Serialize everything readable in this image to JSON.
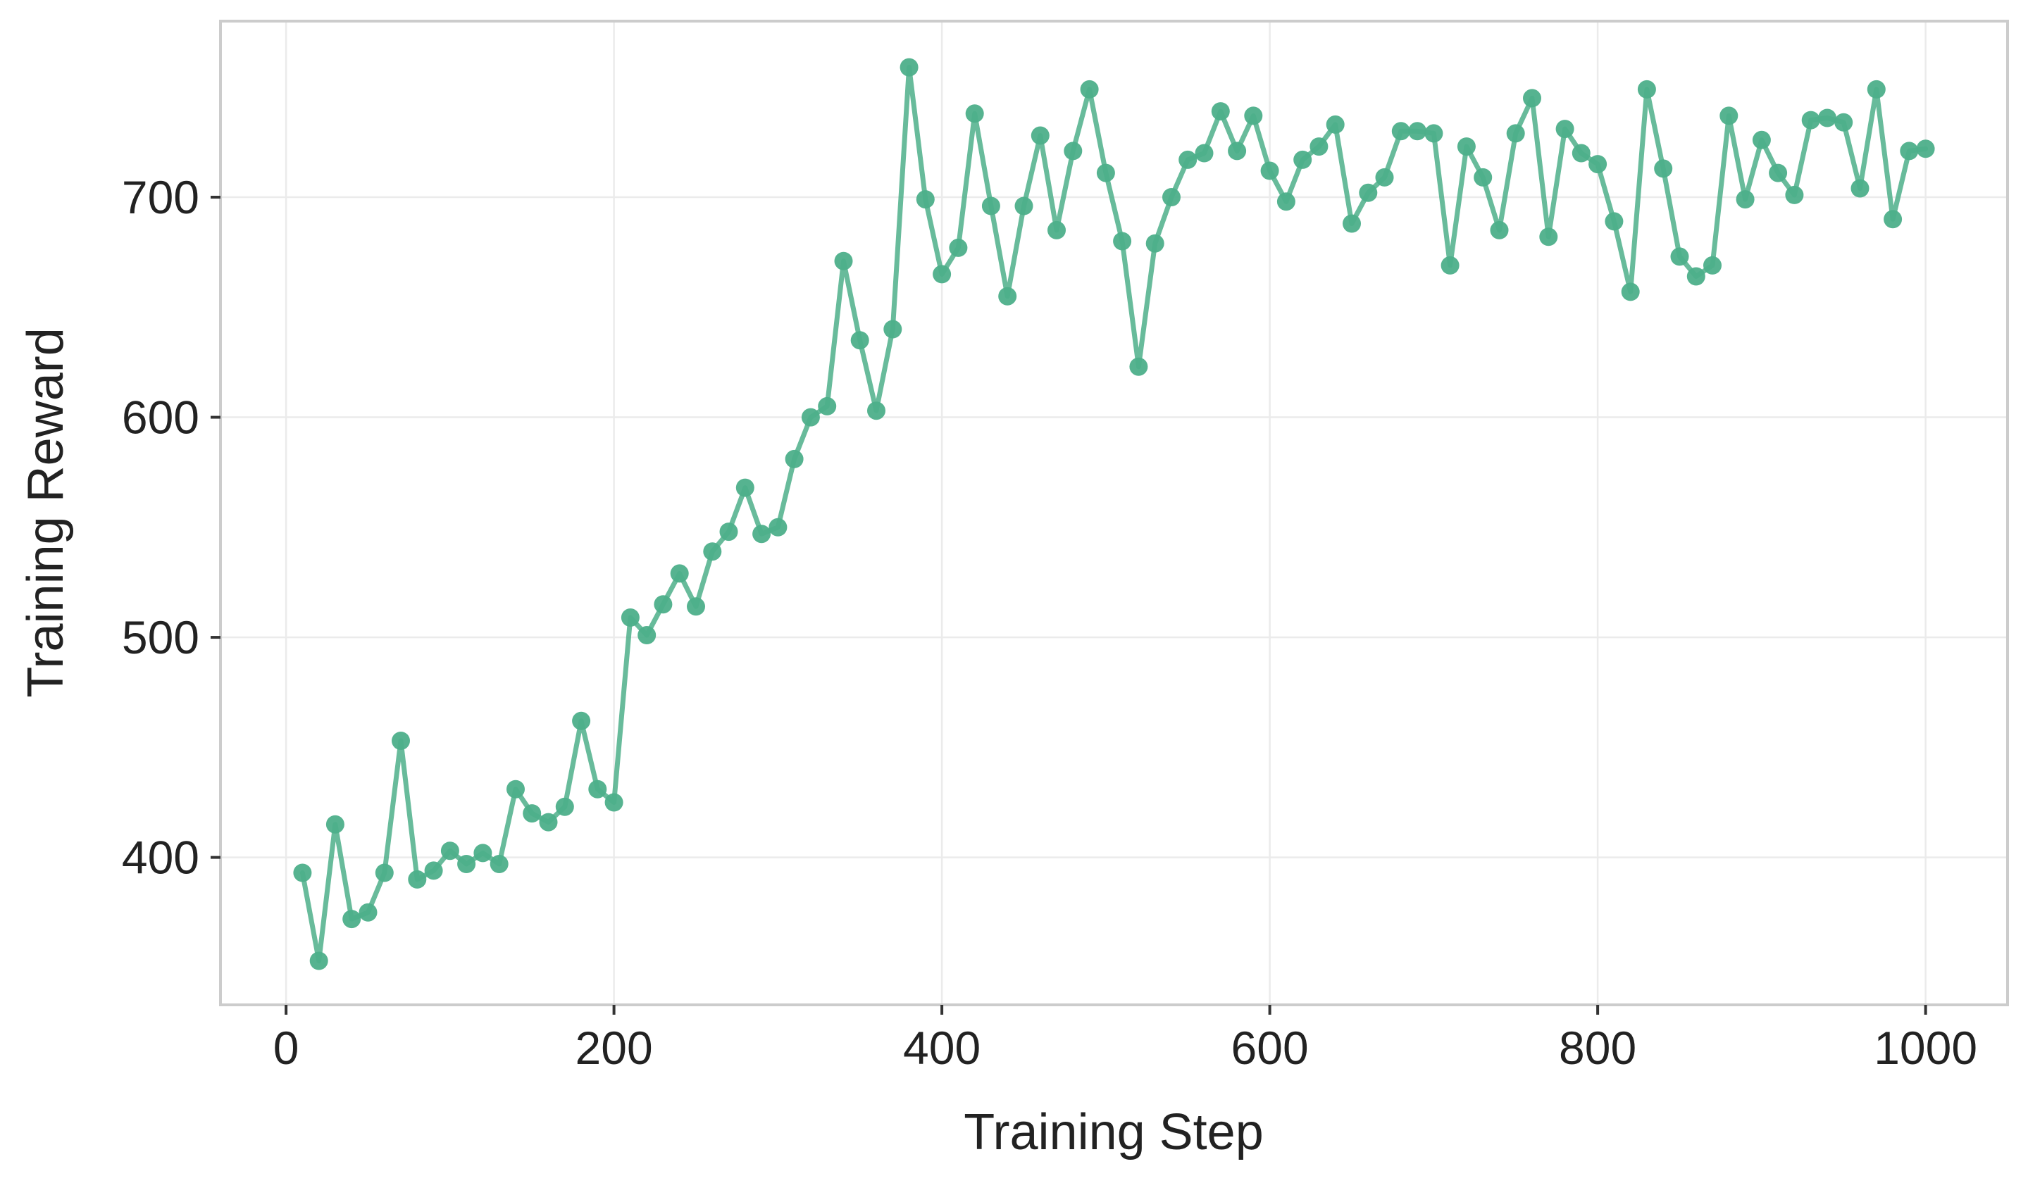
{
  "chart_data": {
    "type": "line",
    "xlabel": "Training Step",
    "ylabel": "Training Reward",
    "xlim": [
      -40,
      1050
    ],
    "ylim": [
      333,
      780
    ],
    "xticks": [
      0,
      200,
      400,
      600,
      800,
      1000
    ],
    "yticks": [
      400,
      500,
      600,
      700
    ],
    "grid": true,
    "series": [
      {
        "color": "#4daf8a",
        "x": [
          10,
          20,
          30,
          40,
          50,
          60,
          70,
          80,
          90,
          100,
          110,
          120,
          130,
          140,
          150,
          160,
          170,
          180,
          190,
          200,
          210,
          220,
          230,
          240,
          250,
          260,
          270,
          280,
          290,
          300,
          310,
          320,
          330,
          340,
          350,
          360,
          370,
          380,
          390,
          400,
          410,
          420,
          430,
          440,
          450,
          460,
          470,
          480,
          490,
          500,
          510,
          520,
          530,
          540,
          550,
          560,
          570,
          580,
          590,
          600,
          610,
          620,
          630,
          640,
          650,
          660,
          670,
          680,
          690,
          700,
          710,
          720,
          730,
          740,
          750,
          760,
          770,
          780,
          790,
          800,
          810,
          820,
          830,
          840,
          850,
          860,
          870,
          880,
          890,
          900,
          910,
          920,
          930,
          940,
          950,
          960,
          970,
          980,
          990,
          1000
        ],
        "y": [
          393,
          353,
          415,
          372,
          375,
          393,
          453,
          390,
          394,
          403,
          397,
          402,
          397,
          431,
          420,
          416,
          423,
          462,
          431,
          425,
          509,
          501,
          515,
          529,
          514,
          539,
          548,
          568,
          547,
          550,
          581,
          600,
          605,
          671,
          635,
          603,
          640,
          759,
          699,
          665,
          677,
          738,
          696,
          655,
          696,
          728,
          685,
          721,
          749,
          711,
          680,
          623,
          679,
          700,
          717,
          720,
          739,
          721,
          737,
          712,
          698,
          717,
          723,
          733,
          688,
          702,
          709,
          730,
          730,
          729,
          669,
          723,
          709,
          685,
          729,
          745,
          682,
          731,
          720,
          715,
          689,
          657,
          749,
          713,
          673,
          664,
          669,
          737,
          699,
          726,
          711,
          701,
          735,
          736,
          734,
          704,
          749,
          690,
          721,
          722
        ]
      }
    ]
  }
}
